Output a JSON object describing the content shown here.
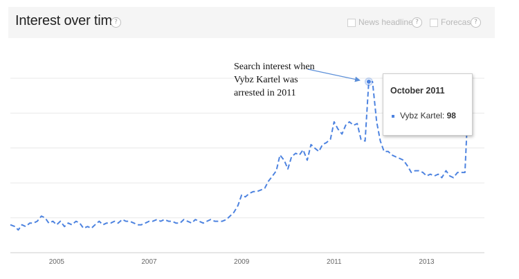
{
  "header": {
    "title": "Interest over time",
    "help_glyph": "?",
    "news_headlines_label": "News headlines",
    "forecast_label": "Forecast"
  },
  "tooltip": {
    "title": "October 2011",
    "series_label": "Vybz Kartel:",
    "value": "98"
  },
  "annotation": {
    "lines": [
      "Search interest when",
      "Vybz Kartel was",
      "arrested in 2011"
    ]
  },
  "colors": {
    "line": "#4d83e0",
    "grid": "#e8e8e8",
    "header_bg": "#f5f5f5"
  },
  "chart_data": {
    "type": "line",
    "title": "",
    "xlabel": "",
    "ylabel": "",
    "xlim": [
      2004.0,
      2014.25
    ],
    "ylim": [
      0,
      100
    ],
    "grid": true,
    "line_style": "dashed",
    "x_tick_labels": [
      "2005",
      "2007",
      "2009",
      "2011",
      "2013"
    ],
    "x_tick_values": [
      2005,
      2007,
      2009,
      2011,
      2013
    ],
    "series": [
      {
        "name": "Vybz Kartel",
        "points": [
          [
            2004.0,
            16
          ],
          [
            2004.1,
            15
          ],
          [
            2004.17,
            13
          ],
          [
            2004.25,
            16
          ],
          [
            2004.33,
            15
          ],
          [
            2004.42,
            17
          ],
          [
            2004.5,
            17
          ],
          [
            2004.58,
            18
          ],
          [
            2004.67,
            21
          ],
          [
            2004.75,
            20
          ],
          [
            2004.83,
            17
          ],
          [
            2004.92,
            18
          ],
          [
            2005.0,
            16
          ],
          [
            2005.08,
            18
          ],
          [
            2005.17,
            15
          ],
          [
            2005.25,
            17
          ],
          [
            2005.33,
            16
          ],
          [
            2005.42,
            18
          ],
          [
            2005.5,
            17
          ],
          [
            2005.58,
            14
          ],
          [
            2005.67,
            15
          ],
          [
            2005.75,
            14
          ],
          [
            2005.83,
            16
          ],
          [
            2005.92,
            18
          ],
          [
            2006.0,
            16
          ],
          [
            2006.08,
            17
          ],
          [
            2006.17,
            17
          ],
          [
            2006.25,
            18
          ],
          [
            2006.33,
            17
          ],
          [
            2006.42,
            19
          ],
          [
            2006.5,
            18
          ],
          [
            2006.58,
            18
          ],
          [
            2006.67,
            17
          ],
          [
            2006.75,
            16
          ],
          [
            2006.83,
            16
          ],
          [
            2006.92,
            17
          ],
          [
            2007.0,
            18
          ],
          [
            2007.08,
            18
          ],
          [
            2007.17,
            19
          ],
          [
            2007.25,
            18
          ],
          [
            2007.33,
            19
          ],
          [
            2007.42,
            18
          ],
          [
            2007.5,
            18
          ],
          [
            2007.58,
            17
          ],
          [
            2007.67,
            17
          ],
          [
            2007.75,
            19
          ],
          [
            2007.83,
            18
          ],
          [
            2007.92,
            17
          ],
          [
            2008.0,
            19
          ],
          [
            2008.08,
            18
          ],
          [
            2008.17,
            17
          ],
          [
            2008.25,
            18
          ],
          [
            2008.33,
            19
          ],
          [
            2008.42,
            18
          ],
          [
            2008.5,
            18
          ],
          [
            2008.58,
            18
          ],
          [
            2008.67,
            19
          ],
          [
            2008.75,
            21
          ],
          [
            2008.83,
            23
          ],
          [
            2008.92,
            27
          ],
          [
            2009.0,
            33
          ],
          [
            2009.08,
            32
          ],
          [
            2009.17,
            34
          ],
          [
            2009.25,
            35
          ],
          [
            2009.33,
            35
          ],
          [
            2009.42,
            36
          ],
          [
            2009.5,
            37
          ],
          [
            2009.58,
            41
          ],
          [
            2009.67,
            44
          ],
          [
            2009.75,
            47
          ],
          [
            2009.83,
            56
          ],
          [
            2009.92,
            53
          ],
          [
            2010.0,
            48
          ],
          [
            2010.08,
            55
          ],
          [
            2010.17,
            57
          ],
          [
            2010.25,
            56
          ],
          [
            2010.33,
            59
          ],
          [
            2010.42,
            53
          ],
          [
            2010.5,
            62
          ],
          [
            2010.58,
            60
          ],
          [
            2010.67,
            58
          ],
          [
            2010.75,
            62
          ],
          [
            2010.83,
            63
          ],
          [
            2010.92,
            65
          ],
          [
            2011.0,
            75
          ],
          [
            2011.08,
            71
          ],
          [
            2011.17,
            68
          ],
          [
            2011.25,
            73
          ],
          [
            2011.33,
            75
          ],
          [
            2011.42,
            73
          ],
          [
            2011.5,
            74
          ],
          [
            2011.58,
            65
          ],
          [
            2011.67,
            64
          ],
          [
            2011.75,
            98
          ],
          [
            2011.83,
            98
          ],
          [
            2011.92,
            75
          ],
          [
            2012.0,
            64
          ],
          [
            2012.08,
            58
          ],
          [
            2012.17,
            58
          ],
          [
            2012.25,
            56
          ],
          [
            2012.33,
            55
          ],
          [
            2012.42,
            54
          ],
          [
            2012.5,
            53
          ],
          [
            2012.58,
            50
          ],
          [
            2012.67,
            46
          ],
          [
            2012.75,
            47
          ],
          [
            2012.83,
            47
          ],
          [
            2012.92,
            46
          ],
          [
            2013.0,
            44
          ],
          [
            2013.08,
            45
          ],
          [
            2013.17,
            44
          ],
          [
            2013.25,
            45
          ],
          [
            2013.33,
            43
          ],
          [
            2013.42,
            47
          ],
          [
            2013.5,
            44
          ],
          [
            2013.58,
            43
          ],
          [
            2013.67,
            46
          ],
          [
            2013.75,
            46
          ],
          [
            2013.83,
            46
          ],
          [
            2013.92,
            98
          ]
        ]
      }
    ],
    "highlight_point": [
      2011.75,
      98
    ]
  }
}
